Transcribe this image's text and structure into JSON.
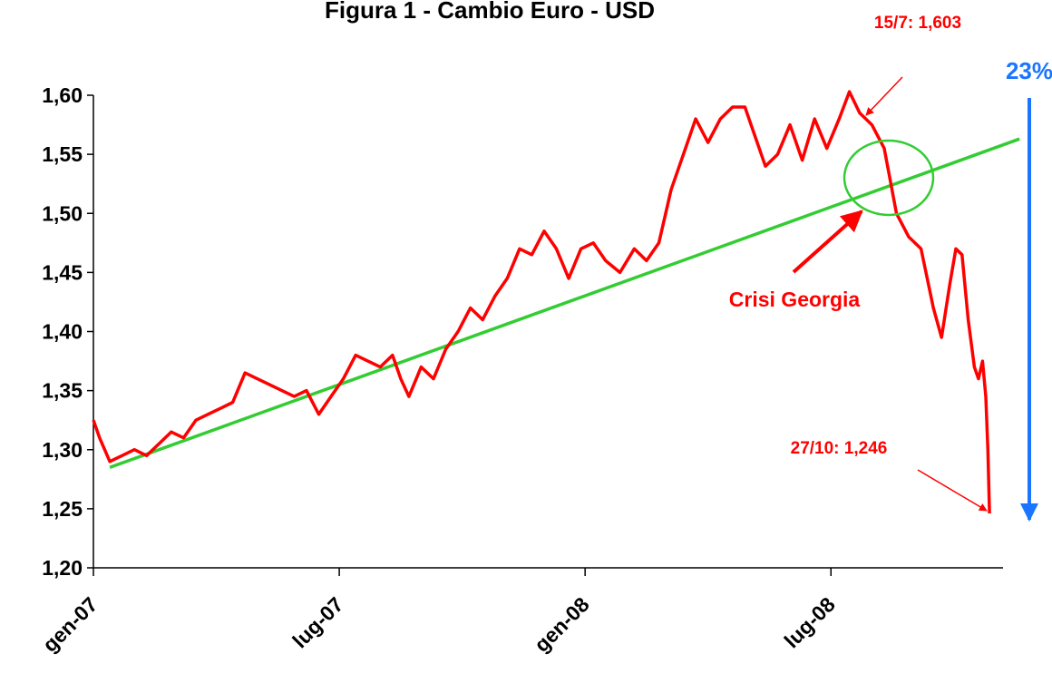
{
  "chart_data": {
    "type": "line",
    "title": "Figura 1 - Cambio Euro - USD",
    "x": [
      0,
      0.15,
      0.4,
      0.7,
      1.0,
      1.3,
      1.6,
      1.9,
      2.2,
      2.5,
      2.8,
      3.1,
      3.4,
      3.7,
      4.0,
      4.3,
      4.6,
      4.9,
      5.2,
      5.5,
      5.8,
      6.1,
      6.4,
      6.7,
      7.0,
      7.3,
      7.5,
      7.7,
      8.0,
      8.3,
      8.6,
      8.9,
      9.2,
      9.5,
      9.8,
      10.1,
      10.4,
      10.7,
      11.0,
      11.3,
      11.6,
      11.9,
      12.2,
      12.5,
      12.85,
      13.2,
      13.5,
      13.8,
      14.1,
      14.4,
      14.7,
      15.0,
      15.3,
      15.6,
      15.9,
      16.1,
      16.4,
      16.7,
      17.0,
      17.3,
      17.6,
      17.9,
      18.2,
      18.45,
      18.7,
      19.0,
      19.3,
      19.6,
      19.9,
      20.2,
      20.5,
      20.7,
      20.9,
      21.05,
      21.2,
      21.35,
      21.5,
      21.6,
      21.7,
      21.78,
      21.83,
      21.87
    ],
    "values": [
      1.325,
      1.31,
      1.29,
      1.295,
      1.3,
      1.295,
      1.305,
      1.315,
      1.31,
      1.325,
      1.33,
      1.335,
      1.34,
      1.365,
      1.36,
      1.355,
      1.35,
      1.345,
      1.35,
      1.33,
      1.345,
      1.36,
      1.38,
      1.375,
      1.37,
      1.38,
      1.36,
      1.345,
      1.37,
      1.36,
      1.385,
      1.4,
      1.42,
      1.41,
      1.43,
      1.445,
      1.47,
      1.465,
      1.485,
      1.47,
      1.445,
      1.47,
      1.475,
      1.46,
      1.45,
      1.47,
      1.46,
      1.475,
      1.52,
      1.55,
      1.58,
      1.56,
      1.58,
      1.59,
      1.59,
      1.57,
      1.54,
      1.55,
      1.575,
      1.545,
      1.58,
      1.555,
      1.58,
      1.603,
      1.585,
      1.575,
      1.555,
      1.5,
      1.48,
      1.47,
      1.42,
      1.395,
      1.44,
      1.47,
      1.465,
      1.41,
      1.37,
      1.36,
      1.375,
      1.345,
      1.3,
      1.246
    ],
    "color": "#ff0000",
    "trendline": {
      "x": [
        0.4,
        22.6
      ],
      "values": [
        1.285,
        1.563
      ],
      "color": "#33cc33"
    },
    "xlim": [
      0,
      22.2
    ],
    "xticks": [
      {
        "value": 0,
        "label": "gen-07"
      },
      {
        "value": 6,
        "label": "lug-07"
      },
      {
        "value": 12,
        "label": "gen-08"
      },
      {
        "value": 18,
        "label": "lug-08"
      }
    ],
    "ylim": [
      1.2,
      1.6
    ],
    "yticks": [
      {
        "value": 1.2,
        "label": "1,20"
      },
      {
        "value": 1.25,
        "label": "1,25"
      },
      {
        "value": 1.3,
        "label": "1,30"
      },
      {
        "value": 1.35,
        "label": "1,35"
      },
      {
        "value": 1.4,
        "label": "1,40"
      },
      {
        "value": 1.45,
        "label": "1,45"
      },
      {
        "value": 1.5,
        "label": "1,50"
      },
      {
        "value": 1.55,
        "label": "1,55"
      },
      {
        "value": 1.6,
        "label": "1,60"
      }
    ],
    "grid": false,
    "annotations": {
      "peak": "15/7: 1,603",
      "last": "27/10: 1,246",
      "event": "Crisi Georgia",
      "drop": "23%"
    }
  }
}
